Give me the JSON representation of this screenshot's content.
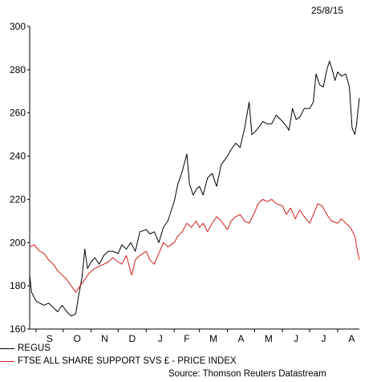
{
  "header": {
    "date": "25/8/15"
  },
  "chart_data": {
    "type": "line",
    "title": "",
    "xlabel": "",
    "ylabel": "",
    "ylim": [
      160,
      300
    ],
    "yticks": [
      160,
      180,
      200,
      220,
      240,
      260,
      280,
      300
    ],
    "x_range": [
      "2014-08-25",
      "2015-08-25"
    ],
    "x_ticks": [
      {
        "label": "S",
        "date": "2014-09-01"
      },
      {
        "label": "O",
        "date": "2014-10-01"
      },
      {
        "label": "N",
        "date": "2014-11-01"
      },
      {
        "label": "D",
        "date": "2014-12-01"
      },
      {
        "label": "J",
        "date": "2015-01-01"
      },
      {
        "label": "F",
        "date": "2015-02-01"
      },
      {
        "label": "M",
        "date": "2015-03-01"
      },
      {
        "label": "A",
        "date": "2015-04-01"
      },
      {
        "label": "M",
        "date": "2015-05-01"
      },
      {
        "label": "J",
        "date": "2015-06-01"
      },
      {
        "label": "J",
        "date": "2015-07-01"
      },
      {
        "label": "A",
        "date": "2015-08-01"
      }
    ],
    "grid": false,
    "legend_position": "bottom-left",
    "series": [
      {
        "name": "REGUS",
        "color": "#000000",
        "points": [
          [
            "2014-08-25",
            185
          ],
          [
            "2014-08-27",
            177
          ],
          [
            "2014-09-01",
            173
          ],
          [
            "2014-09-05",
            172
          ],
          [
            "2014-09-10",
            171
          ],
          [
            "2014-09-15",
            172
          ],
          [
            "2014-09-20",
            170
          ],
          [
            "2014-09-25",
            168
          ],
          [
            "2014-09-30",
            171
          ],
          [
            "2014-10-05",
            168
          ],
          [
            "2014-10-10",
            166
          ],
          [
            "2014-10-15",
            167
          ],
          [
            "2014-10-18",
            175
          ],
          [
            "2014-10-22",
            184
          ],
          [
            "2014-10-25",
            197
          ],
          [
            "2014-10-28",
            188
          ],
          [
            "2014-11-01",
            191
          ],
          [
            "2014-11-05",
            193
          ],
          [
            "2014-11-10",
            190
          ],
          [
            "2014-11-15",
            194
          ],
          [
            "2014-11-20",
            196
          ],
          [
            "2014-11-25",
            196
          ],
          [
            "2014-12-01",
            195
          ],
          [
            "2014-12-05",
            199
          ],
          [
            "2014-12-10",
            197
          ],
          [
            "2014-12-15",
            200
          ],
          [
            "2014-12-20",
            196
          ],
          [
            "2014-12-25",
            205
          ],
          [
            "2015-01-01",
            206
          ],
          [
            "2015-01-05",
            204
          ],
          [
            "2015-01-10",
            205
          ],
          [
            "2015-01-15",
            200
          ],
          [
            "2015-01-20",
            207
          ],
          [
            "2015-01-25",
            210
          ],
          [
            "2015-02-01",
            219
          ],
          [
            "2015-02-05",
            227
          ],
          [
            "2015-02-10",
            233
          ],
          [
            "2015-02-15",
            241
          ],
          [
            "2015-02-18",
            227
          ],
          [
            "2015-02-22",
            222
          ],
          [
            "2015-02-26",
            225
          ],
          [
            "2015-03-01",
            226
          ],
          [
            "2015-03-05",
            222
          ],
          [
            "2015-03-10",
            230
          ],
          [
            "2015-03-15",
            232
          ],
          [
            "2015-03-20",
            226
          ],
          [
            "2015-03-25",
            236
          ],
          [
            "2015-04-01",
            240
          ],
          [
            "2015-04-05",
            243
          ],
          [
            "2015-04-10",
            246
          ],
          [
            "2015-04-15",
            244
          ],
          [
            "2015-04-20",
            253
          ],
          [
            "2015-04-25",
            265
          ],
          [
            "2015-04-28",
            250
          ],
          [
            "2015-05-01",
            251
          ],
          [
            "2015-05-05",
            253
          ],
          [
            "2015-05-10",
            256
          ],
          [
            "2015-05-15",
            255
          ],
          [
            "2015-05-20",
            255
          ],
          [
            "2015-05-25",
            259
          ],
          [
            "2015-06-01",
            256
          ],
          [
            "2015-06-05",
            254
          ],
          [
            "2015-06-08",
            252
          ],
          [
            "2015-06-12",
            262
          ],
          [
            "2015-06-16",
            257
          ],
          [
            "2015-06-20",
            258
          ],
          [
            "2015-06-25",
            262
          ],
          [
            "2015-07-01",
            262
          ],
          [
            "2015-07-05",
            265
          ],
          [
            "2015-07-08",
            278
          ],
          [
            "2015-07-12",
            273
          ],
          [
            "2015-07-16",
            272
          ],
          [
            "2015-07-20",
            280
          ],
          [
            "2015-07-23",
            284
          ],
          [
            "2015-07-26",
            280
          ],
          [
            "2015-07-29",
            275
          ],
          [
            "2015-08-01",
            279
          ],
          [
            "2015-08-05",
            277
          ],
          [
            "2015-08-10",
            278
          ],
          [
            "2015-08-14",
            272
          ],
          [
            "2015-08-17",
            253
          ],
          [
            "2015-08-20",
            250
          ],
          [
            "2015-08-22",
            255
          ],
          [
            "2015-08-25",
            267
          ]
        ]
      },
      {
        "name": "FTSE ALL SHARE SUPPORT SVS £ - PRICE INDEX",
        "color": "#d01c1c",
        "points": [
          [
            "2014-08-25",
            198
          ],
          [
            "2014-08-30",
            199
          ],
          [
            "2014-09-05",
            196
          ],
          [
            "2014-09-10",
            195
          ],
          [
            "2014-09-15",
            192
          ],
          [
            "2014-09-20",
            190
          ],
          [
            "2014-09-25",
            187
          ],
          [
            "2014-09-30",
            185
          ],
          [
            "2014-10-05",
            183
          ],
          [
            "2014-10-10",
            180
          ],
          [
            "2014-10-15",
            177
          ],
          [
            "2014-10-20",
            180
          ],
          [
            "2014-10-25",
            183
          ],
          [
            "2014-10-30",
            186
          ],
          [
            "2014-11-05",
            188
          ],
          [
            "2014-11-10",
            189
          ],
          [
            "2014-11-15",
            190
          ],
          [
            "2014-11-20",
            191
          ],
          [
            "2014-11-25",
            193
          ],
          [
            "2014-12-01",
            191
          ],
          [
            "2014-12-05",
            190
          ],
          [
            "2014-12-10",
            194
          ],
          [
            "2014-12-16",
            185
          ],
          [
            "2014-12-20",
            192
          ],
          [
            "2014-12-25",
            194
          ],
          [
            "2015-01-01",
            196
          ],
          [
            "2015-01-05",
            192
          ],
          [
            "2015-01-10",
            190
          ],
          [
            "2015-01-15",
            195
          ],
          [
            "2015-01-20",
            200
          ],
          [
            "2015-01-25",
            198
          ],
          [
            "2015-02-01",
            200
          ],
          [
            "2015-02-05",
            203
          ],
          [
            "2015-02-10",
            205
          ],
          [
            "2015-02-15",
            209
          ],
          [
            "2015-02-20",
            207
          ],
          [
            "2015-02-25",
            210
          ],
          [
            "2015-03-01",
            207
          ],
          [
            "2015-03-05",
            209
          ],
          [
            "2015-03-10",
            205
          ],
          [
            "2015-03-15",
            209
          ],
          [
            "2015-03-20",
            212
          ],
          [
            "2015-03-25",
            210
          ],
          [
            "2015-04-01",
            206
          ],
          [
            "2015-04-05",
            210
          ],
          [
            "2015-04-10",
            212
          ],
          [
            "2015-04-15",
            213
          ],
          [
            "2015-04-20",
            210
          ],
          [
            "2015-04-25",
            209
          ],
          [
            "2015-05-01",
            214
          ],
          [
            "2015-05-05",
            218
          ],
          [
            "2015-05-10",
            220
          ],
          [
            "2015-05-15",
            219
          ],
          [
            "2015-05-20",
            220
          ],
          [
            "2015-05-25",
            218
          ],
          [
            "2015-06-01",
            217
          ],
          [
            "2015-06-05",
            213
          ],
          [
            "2015-06-10",
            216
          ],
          [
            "2015-06-15",
            211
          ],
          [
            "2015-06-20",
            215
          ],
          [
            "2015-06-25",
            212
          ],
          [
            "2015-07-01",
            209
          ],
          [
            "2015-07-05",
            213
          ],
          [
            "2015-07-10",
            218
          ],
          [
            "2015-07-15",
            217
          ],
          [
            "2015-07-20",
            213
          ],
          [
            "2015-07-25",
            210
          ],
          [
            "2015-08-01",
            209
          ],
          [
            "2015-08-05",
            211
          ],
          [
            "2015-08-10",
            209
          ],
          [
            "2015-08-15",
            207
          ],
          [
            "2015-08-20",
            203
          ],
          [
            "2015-08-23",
            196
          ],
          [
            "2015-08-25",
            192
          ]
        ]
      }
    ]
  },
  "legend": [
    {
      "label": "REGUS",
      "color": "#000000"
    },
    {
      "label": "FTSE ALL SHARE SUPPORT SVS £ - PRICE INDEX",
      "color": "#d01c1c"
    }
  ],
  "source": "Source: Thomson Reuters Datastream"
}
